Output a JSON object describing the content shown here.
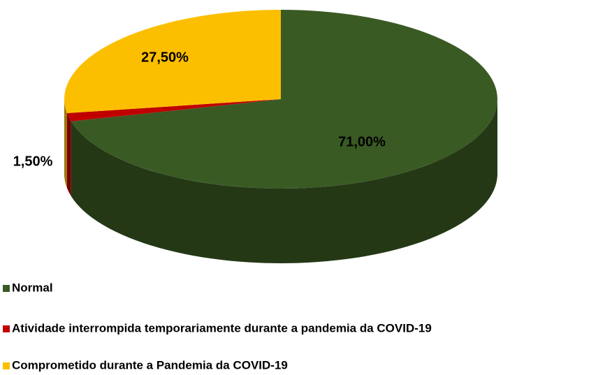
{
  "chart_data": {
    "type": "pie3d",
    "categories": [
      "Normal",
      "Atividade interrompida temporariamente durante a pandemia da COVID-19",
      "Comprometido durante a Pandemia da COVID-19"
    ],
    "values": [
      71,
      1.5,
      27.5
    ],
    "value_labels": [
      "71,00%",
      "1,50%",
      "27,50%"
    ],
    "colors": [
      "#3a5a24",
      "#c00000",
      "#fcbf00"
    ],
    "legend": "bottom-left"
  }
}
